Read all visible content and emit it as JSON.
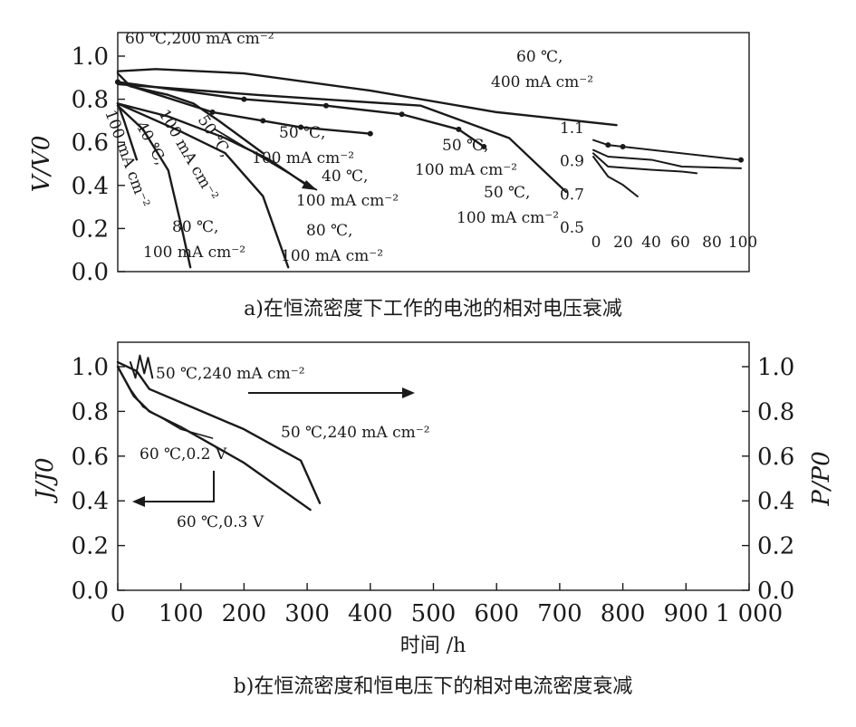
{
  "chart_data": [
    {
      "type": "line",
      "caption": "a)在恒流密度下工作的电池的相对电压衰减",
      "ylabel": "V/V0",
      "ylim": [
        0.0,
        1.0
      ],
      "yticks": [
        "0.0",
        "0.2",
        "0.4",
        "0.6",
        "0.8",
        "1.0"
      ],
      "xlim": [
        0,
        1000
      ],
      "series": [
        {
          "name": "60 ℃,200 mA cm⁻²",
          "x": [
            0,
            20,
            50,
            80,
            120,
            160,
            230
          ],
          "y": [
            0.92,
            0.86,
            0.84,
            0.82,
            0.78,
            0.7,
            0.55
          ]
        },
        {
          "name": "60 ℃, 400 mA cm⁻²",
          "x": [
            0,
            60,
            200,
            400,
            600,
            790
          ],
          "y": [
            0.93,
            0.94,
            0.92,
            0.84,
            0.74,
            0.68
          ]
        },
        {
          "name": "50 ℃, 100 mA cm⁻²",
          "x": [
            0,
            150,
            230,
            290,
            400
          ],
          "y": [
            0.88,
            0.74,
            0.7,
            0.67,
            0.64
          ]
        },
        {
          "name": "50 ℃, 100 mA cm⁻²",
          "x": [
            0,
            200,
            330,
            450,
            540,
            580
          ],
          "y": [
            0.88,
            0.8,
            0.77,
            0.73,
            0.66,
            0.58
          ]
        },
        {
          "name": "50 ℃, 100 mA cm⁻²",
          "x": [
            0,
            220,
            480,
            620,
            710
          ],
          "y": [
            0.87,
            0.82,
            0.77,
            0.62,
            0.37
          ]
        },
        {
          "name": "40 ℃, 100 mA cm⁻²",
          "x": [
            0,
            80,
            170,
            240,
            300
          ],
          "y": [
            0.78,
            0.72,
            0.62,
            0.52,
            0.4
          ]
        },
        {
          "name": "80 ℃, 100 mA cm⁻²",
          "x": [
            0,
            100,
            170,
            230,
            270
          ],
          "y": [
            0.78,
            0.65,
            0.55,
            0.35,
            0.02
          ]
        },
        {
          "name": "80 ℃, 100 mA cm⁻²",
          "x": [
            0,
            40,
            80,
            100,
            115
          ],
          "y": [
            0.77,
            0.66,
            0.47,
            0.22,
            0.02
          ]
        },
        {
          "name": "100 mA cm⁻²",
          "x": [
            0,
            10,
            30
          ],
          "y": [
            0.78,
            0.7,
            0.52
          ]
        }
      ],
      "annotations": [
        "60 ℃,200 mA cm⁻²",
        "60 ℃,",
        "400 mA cm⁻²",
        "50 ℃,",
        "100 mA cm⁻²",
        "50 ℃,",
        "100 mA cm⁻²",
        "40 ℃,",
        "100 mA cm⁻²",
        "50 ℃,",
        "100 mA cm⁻²",
        "80 ℃,",
        "100 mA cm⁻²",
        "80 ℃,",
        "100 mA cm⁻²",
        "50 ℃,",
        "40 ℃,",
        "100 mA cm⁻²",
        "100 mA cm⁻²"
      ],
      "inset": {
        "yticks": [
          "1.1",
          "0.9",
          "0.7",
          "0.5"
        ],
        "xticks": [
          "0",
          "20",
          "40",
          "60",
          "80",
          "100"
        ],
        "series": [
          {
            "x": [
              0,
              10,
              20,
              100
            ],
            "y": [
              1.02,
              0.99,
              0.98,
              0.9
            ]
          },
          {
            "x": [
              0,
              10,
              40,
              60,
              100
            ],
            "y": [
              0.96,
              0.92,
              0.9,
              0.86,
              0.85
            ]
          },
          {
            "x": [
              0,
              10,
              40,
              60,
              70
            ],
            "y": [
              0.94,
              0.86,
              0.84,
              0.83,
              0.82
            ]
          },
          {
            "x": [
              0,
              10,
              20,
              30
            ],
            "y": [
              0.92,
              0.8,
              0.75,
              0.68
            ]
          }
        ]
      }
    },
    {
      "type": "line",
      "caption": "b)在恒流密度和恒电压下的相对电流密度衰减",
      "xlabel": "时间 /h",
      "ylabel": "J/J0",
      "ylabel_right": "P/P0",
      "xlim": [
        0,
        1000
      ],
      "ylim": [
        0.0,
        1.0
      ],
      "xticks": [
        "0",
        "100",
        "200",
        "300",
        "400",
        "500",
        "600",
        "700",
        "800",
        "900",
        "1 000"
      ],
      "yticks": [
        "0.0",
        "0.2",
        "0.4",
        "0.6",
        "0.8",
        "1.0"
      ],
      "series": [
        {
          "name": "50 ℃,240 mA cm⁻²",
          "x": [
            0,
            30,
            50,
            100,
            200,
            290,
            320
          ],
          "y": [
            1.02,
            0.98,
            0.9,
            0.84,
            0.72,
            0.58,
            0.39
          ]
        },
        {
          "name": "60 ℃,0.2 V",
          "x": [
            0,
            20,
            40,
            70,
            100,
            150
          ],
          "y": [
            1.0,
            0.9,
            0.82,
            0.77,
            0.72,
            0.68
          ]
        },
        {
          "name": "60 ℃,0.3 V",
          "x": [
            0,
            25,
            50,
            100,
            200,
            305
          ],
          "y": [
            1.0,
            0.87,
            0.8,
            0.73,
            0.57,
            0.36
          ]
        }
      ],
      "annotations": [
        "50 ℃,240 mA cm⁻²",
        "50 ℃,240 mA cm⁻²",
        "60 ℃,0.2 V",
        "60 ℃,0.3 V"
      ]
    }
  ]
}
